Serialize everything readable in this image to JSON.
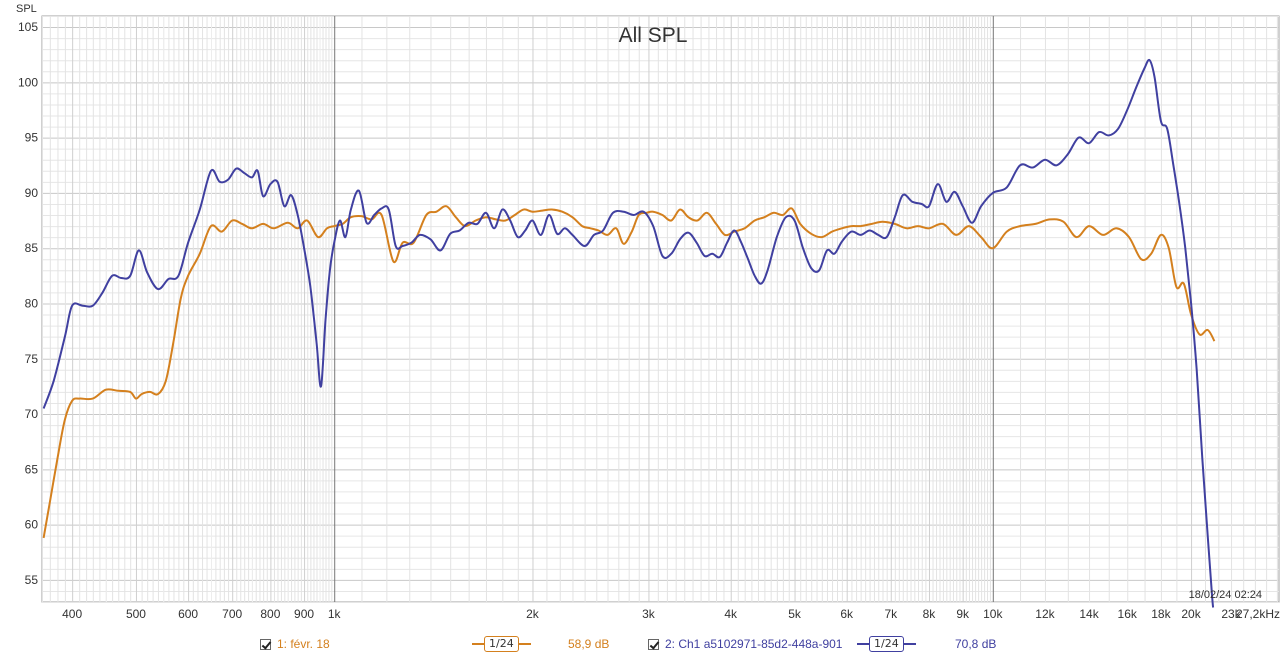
{
  "chart_data": {
    "type": "line",
    "title": "All SPL",
    "ylabel": "SPL",
    "xlabel": "",
    "x_scale": "log",
    "xlim": [
      360,
      27200
    ],
    "ylim": [
      53,
      106
    ],
    "grid": true,
    "y_ticks": [
      55,
      60,
      65,
      70,
      75,
      80,
      85,
      90,
      95,
      100,
      105
    ],
    "x_tick_labels": [
      {
        "f": 400,
        "label": "400"
      },
      {
        "f": 500,
        "label": "500"
      },
      {
        "f": 600,
        "label": "600"
      },
      {
        "f": 700,
        "label": "700"
      },
      {
        "f": 800,
        "label": "800"
      },
      {
        "f": 900,
        "label": "900"
      },
      {
        "f": 1000,
        "label": "1k"
      },
      {
        "f": 2000,
        "label": "2k"
      },
      {
        "f": 3000,
        "label": "3k"
      },
      {
        "f": 4000,
        "label": "4k"
      },
      {
        "f": 5000,
        "label": "5k"
      },
      {
        "f": 6000,
        "label": "6k"
      },
      {
        "f": 7000,
        "label": "7k"
      },
      {
        "f": 8000,
        "label": "8k"
      },
      {
        "f": 9000,
        "label": "9k"
      },
      {
        "f": 10000,
        "label": "10k"
      },
      {
        "f": 12000,
        "label": "12k"
      },
      {
        "f": 14000,
        "label": "14k"
      },
      {
        "f": 16000,
        "label": "16k"
      },
      {
        "f": 18000,
        "label": "18k"
      },
      {
        "f": 20000,
        "label": "20k"
      },
      {
        "f": 23000,
        "label": "23k"
      },
      {
        "f": 27200,
        "label": "27,2kHz"
      }
    ],
    "timestamp": "18/02/24 02:24",
    "series": [
      {
        "name": "1: févr. 18",
        "color": "#d4801e",
        "points": [
          [
            362,
            58.8
          ],
          [
            370,
            62
          ],
          [
            380,
            66
          ],
          [
            390,
            69.5
          ],
          [
            400,
            71.2
          ],
          [
            410,
            71.4
          ],
          [
            430,
            71.4
          ],
          [
            450,
            72.2
          ],
          [
            470,
            72.1
          ],
          [
            490,
            72.0
          ],
          [
            500,
            71.4
          ],
          [
            510,
            71.8
          ],
          [
            525,
            72.0
          ],
          [
            540,
            71.8
          ],
          [
            555,
            73.0
          ],
          [
            570,
            76.5
          ],
          [
            585,
            80.5
          ],
          [
            600,
            82.5
          ],
          [
            625,
            84.5
          ],
          [
            650,
            87.0
          ],
          [
            675,
            86.5
          ],
          [
            700,
            87.5
          ],
          [
            725,
            87.2
          ],
          [
            750,
            86.8
          ],
          [
            780,
            87.2
          ],
          [
            810,
            86.8
          ],
          [
            850,
            87.3
          ],
          [
            880,
            86.8
          ],
          [
            910,
            87.5
          ],
          [
            945,
            86.0
          ],
          [
            975,
            86.8
          ],
          [
            1000,
            87.0
          ],
          [
            1030,
            87.2
          ],
          [
            1060,
            87.8
          ],
          [
            1100,
            87.9
          ],
          [
            1140,
            87.6
          ],
          [
            1180,
            88.0
          ],
          [
            1230,
            83.8
          ],
          [
            1270,
            85.5
          ],
          [
            1320,
            85.5
          ],
          [
            1380,
            88.0
          ],
          [
            1430,
            88.3
          ],
          [
            1480,
            88.8
          ],
          [
            1530,
            87.8
          ],
          [
            1580,
            87.0
          ],
          [
            1640,
            87.5
          ],
          [
            1700,
            87.8
          ],
          [
            1760,
            87.6
          ],
          [
            1820,
            87.5
          ],
          [
            1880,
            88.0
          ],
          [
            1940,
            88.5
          ],
          [
            2000,
            88.3
          ],
          [
            2070,
            88.4
          ],
          [
            2140,
            88.5
          ],
          [
            2220,
            88.3
          ],
          [
            2300,
            87.8
          ],
          [
            2380,
            87.0
          ],
          [
            2450,
            86.8
          ],
          [
            2520,
            86.6
          ],
          [
            2600,
            86.2
          ],
          [
            2680,
            86.8
          ],
          [
            2750,
            85.4
          ],
          [
            2830,
            86.5
          ],
          [
            2900,
            88.0
          ],
          [
            2980,
            88.2
          ],
          [
            3050,
            88.3
          ],
          [
            3150,
            88.0
          ],
          [
            3250,
            87.5
          ],
          [
            3350,
            88.5
          ],
          [
            3450,
            87.8
          ],
          [
            3560,
            87.5
          ],
          [
            3680,
            88.2
          ],
          [
            3800,
            87.2
          ],
          [
            3920,
            86.2
          ],
          [
            4050,
            86.5
          ],
          [
            4200,
            86.8
          ],
          [
            4350,
            87.5
          ],
          [
            4500,
            87.8
          ],
          [
            4650,
            88.2
          ],
          [
            4800,
            88.0
          ],
          [
            4950,
            88.6
          ],
          [
            5100,
            87.2
          ],
          [
            5300,
            86.3
          ],
          [
            5500,
            86.0
          ],
          [
            5700,
            86.5
          ],
          [
            5900,
            86.8
          ],
          [
            6100,
            87.0
          ],
          [
            6300,
            87.0
          ],
          [
            6550,
            87.2
          ],
          [
            6800,
            87.4
          ],
          [
            7100,
            87.2
          ],
          [
            7400,
            86.8
          ],
          [
            7700,
            87.0
          ],
          [
            8000,
            86.8
          ],
          [
            8400,
            87.2
          ],
          [
            8800,
            86.2
          ],
          [
            9200,
            87.0
          ],
          [
            9600,
            86.0
          ],
          [
            10000,
            85.0
          ],
          [
            10500,
            86.5
          ],
          [
            11000,
            87.0
          ],
          [
            11600,
            87.2
          ],
          [
            12200,
            87.6
          ],
          [
            12800,
            87.4
          ],
          [
            13400,
            86.0
          ],
          [
            14000,
            87.0
          ],
          [
            14700,
            86.2
          ],
          [
            15400,
            86.8
          ],
          [
            16100,
            86.0
          ],
          [
            16800,
            84.0
          ],
          [
            17400,
            84.5
          ],
          [
            18000,
            86.2
          ],
          [
            18500,
            85.0
          ],
          [
            19000,
            81.5
          ],
          [
            19500,
            81.8
          ],
          [
            20000,
            79.0
          ],
          [
            20600,
            77.2
          ],
          [
            21200,
            77.6
          ],
          [
            21700,
            76.6
          ]
        ]
      },
      {
        "name": "2: Ch1 a5102971-85d2-448a-901",
        "color": "#4040a0",
        "points": [
          [
            362,
            70.5
          ],
          [
            375,
            73
          ],
          [
            390,
            77
          ],
          [
            400,
            79.8
          ],
          [
            415,
            79.8
          ],
          [
            430,
            79.8
          ],
          [
            445,
            81.0
          ],
          [
            460,
            82.5
          ],
          [
            475,
            82.3
          ],
          [
            490,
            82.5
          ],
          [
            505,
            84.8
          ],
          [
            520,
            82.8
          ],
          [
            540,
            81.3
          ],
          [
            560,
            82.2
          ],
          [
            580,
            82.5
          ],
          [
            600,
            85.5
          ],
          [
            625,
            88.5
          ],
          [
            650,
            92.0
          ],
          [
            670,
            91.0
          ],
          [
            690,
            91.2
          ],
          [
            710,
            92.2
          ],
          [
            730,
            91.8
          ],
          [
            750,
            91.4
          ],
          [
            765,
            92.0
          ],
          [
            780,
            89.7
          ],
          [
            800,
            90.8
          ],
          [
            820,
            91.0
          ],
          [
            840,
            88.8
          ],
          [
            860,
            89.8
          ],
          [
            880,
            88.0
          ],
          [
            900,
            85.0
          ],
          [
            920,
            81.5
          ],
          [
            940,
            76.5
          ],
          [
            955,
            72.5
          ],
          [
            970,
            78.5
          ],
          [
            985,
            83.0
          ],
          [
            1000,
            85.5
          ],
          [
            1020,
            87.5
          ],
          [
            1040,
            86.0
          ],
          [
            1060,
            88.5
          ],
          [
            1090,
            90.2
          ],
          [
            1120,
            87.3
          ],
          [
            1150,
            88.0
          ],
          [
            1180,
            88.6
          ],
          [
            1210,
            88.5
          ],
          [
            1240,
            85.2
          ],
          [
            1270,
            85.2
          ],
          [
            1310,
            85.5
          ],
          [
            1350,
            86.2
          ],
          [
            1400,
            85.8
          ],
          [
            1450,
            84.8
          ],
          [
            1500,
            86.3
          ],
          [
            1550,
            86.6
          ],
          [
            1600,
            87.3
          ],
          [
            1650,
            87.2
          ],
          [
            1700,
            88.2
          ],
          [
            1750,
            86.8
          ],
          [
            1800,
            88.5
          ],
          [
            1850,
            87.5
          ],
          [
            1900,
            86.0
          ],
          [
            1950,
            86.6
          ],
          [
            2000,
            87.5
          ],
          [
            2060,
            86.2
          ],
          [
            2120,
            88.0
          ],
          [
            2180,
            86.3
          ],
          [
            2240,
            86.8
          ],
          [
            2300,
            86.2
          ],
          [
            2400,
            85.2
          ],
          [
            2480,
            86.2
          ],
          [
            2560,
            86.6
          ],
          [
            2650,
            88.2
          ],
          [
            2750,
            88.3
          ],
          [
            2850,
            88.0
          ],
          [
            2950,
            88.3
          ],
          [
            3050,
            87.0
          ],
          [
            3150,
            84.3
          ],
          [
            3250,
            84.5
          ],
          [
            3350,
            85.8
          ],
          [
            3450,
            86.4
          ],
          [
            3550,
            85.5
          ],
          [
            3650,
            84.3
          ],
          [
            3750,
            84.5
          ],
          [
            3850,
            84.2
          ],
          [
            3950,
            85.5
          ],
          [
            4050,
            86.6
          ],
          [
            4150,
            85.5
          ],
          [
            4250,
            84.0
          ],
          [
            4350,
            82.5
          ],
          [
            4450,
            81.8
          ],
          [
            4550,
            83.0
          ],
          [
            4700,
            86.0
          ],
          [
            4850,
            87.8
          ],
          [
            5000,
            87.5
          ],
          [
            5150,
            85.0
          ],
          [
            5300,
            83.2
          ],
          [
            5450,
            83.0
          ],
          [
            5600,
            84.8
          ],
          [
            5750,
            84.5
          ],
          [
            5900,
            85.6
          ],
          [
            6100,
            86.5
          ],
          [
            6300,
            86.2
          ],
          [
            6500,
            86.6
          ],
          [
            6700,
            86.2
          ],
          [
            6900,
            86.0
          ],
          [
            7100,
            87.8
          ],
          [
            7300,
            89.8
          ],
          [
            7550,
            89.2
          ],
          [
            7800,
            89.0
          ],
          [
            8000,
            88.8
          ],
          [
            8250,
            90.8
          ],
          [
            8500,
            89.2
          ],
          [
            8750,
            90.1
          ],
          [
            9000,
            88.8
          ],
          [
            9300,
            87.3
          ],
          [
            9600,
            88.8
          ],
          [
            10000,
            90.0
          ],
          [
            10500,
            90.5
          ],
          [
            11000,
            92.5
          ],
          [
            11500,
            92.3
          ],
          [
            12000,
            93.0
          ],
          [
            12500,
            92.5
          ],
          [
            13000,
            93.5
          ],
          [
            13500,
            95.0
          ],
          [
            14000,
            94.5
          ],
          [
            14500,
            95.5
          ],
          [
            15000,
            95.2
          ],
          [
            15500,
            95.8
          ],
          [
            16000,
            97.5
          ],
          [
            16500,
            99.5
          ],
          [
            17000,
            101.3
          ],
          [
            17300,
            102.0
          ],
          [
            17600,
            100.5
          ],
          [
            18000,
            96.5
          ],
          [
            18400,
            95.8
          ],
          [
            18800,
            92.5
          ],
          [
            19200,
            89.0
          ],
          [
            19600,
            85.0
          ],
          [
            20000,
            80.0
          ],
          [
            20400,
            74.0
          ],
          [
            20800,
            66.0
          ],
          [
            21200,
            59.0
          ],
          [
            21500,
            54.0
          ],
          [
            21600,
            52.5
          ]
        ]
      }
    ]
  },
  "legend": {
    "s1_label": "1: févr. 18",
    "s1_smoothing": "1/24",
    "s1_level": "58,9 dB",
    "s2_label": "2: Ch1 a5102971-85d2-448a-901",
    "s2_smoothing": "1/24",
    "s2_level": "70,8 dB"
  }
}
